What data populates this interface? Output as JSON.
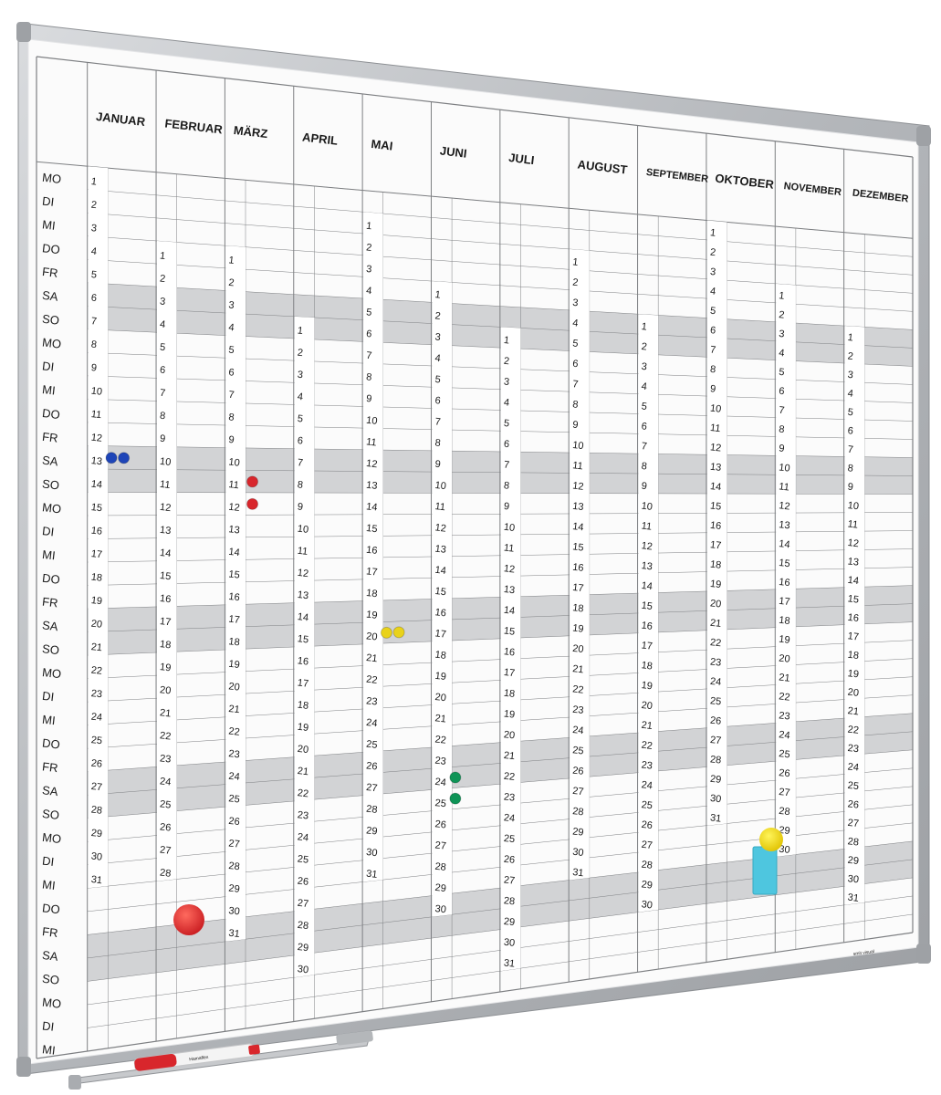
{
  "board": {
    "weekdays": [
      "MO",
      "DI",
      "MI",
      "DO",
      "FR",
      "SA",
      "SO",
      "MO",
      "DI",
      "MI",
      "DO",
      "FR",
      "SA",
      "SO",
      "MO",
      "DI",
      "MI",
      "DO",
      "FR",
      "SA",
      "SO",
      "MO",
      "DI",
      "MI",
      "DO",
      "FR",
      "SA",
      "SO",
      "MO",
      "DI",
      "MI",
      "DO",
      "FR",
      "SA",
      "SO",
      "MO",
      "DI",
      "MI"
    ],
    "months": [
      {
        "name": "JANUAR",
        "days": 31,
        "offset": 0
      },
      {
        "name": "FEBRUAR",
        "days": 28,
        "offset": 3
      },
      {
        "name": "MÄRZ",
        "days": 31,
        "offset": 3
      },
      {
        "name": "APRIL",
        "days": 30,
        "offset": 6
      },
      {
        "name": "MAI",
        "days": 31,
        "offset": 1
      },
      {
        "name": "JUNI",
        "days": 30,
        "offset": 4
      },
      {
        "name": "JULI",
        "days": 31,
        "offset": 6
      },
      {
        "name": "AUGUST",
        "days": 31,
        "offset": 2
      },
      {
        "name": "SEPTEMBER",
        "days": 30,
        "offset": 5
      },
      {
        "name": "OKTOBER",
        "days": 31,
        "offset": 0
      },
      {
        "name": "NOVEMBER",
        "days": 30,
        "offset": 3
      },
      {
        "name": "DEZEMBER",
        "days": 31,
        "offset": 5
      }
    ],
    "marker_label": "Hamaflex",
    "brand_label": "smit visual",
    "colors": {
      "frame": "#b9bcc0",
      "surface": "#fbfbfb",
      "grid": "#7d7f82",
      "weekend": "#d2d3d5",
      "marker": "#d8262c"
    },
    "magnets": [
      {
        "month": 1,
        "day": 13,
        "color": "#1e45b8"
      },
      {
        "month": 1,
        "day": 13,
        "color": "#1e45b8"
      },
      {
        "month": 3,
        "day": 11,
        "color": "#d8262c"
      },
      {
        "month": 3,
        "day": 12,
        "color": "#d8262c"
      },
      {
        "month": 5,
        "day": 20,
        "color": "#e9d21a"
      },
      {
        "month": 5,
        "day": 20,
        "color": "#e9d21a"
      },
      {
        "month": 6,
        "day": 24,
        "color": "#0f9457"
      },
      {
        "month": 6,
        "day": 25,
        "color": "#0f9457"
      }
    ]
  }
}
